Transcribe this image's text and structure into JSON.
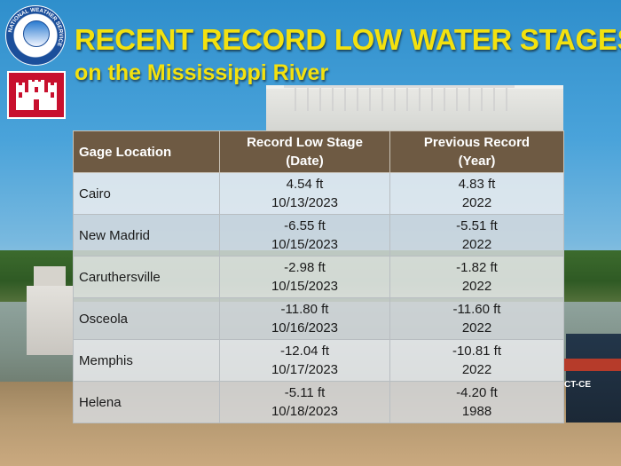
{
  "title": "RECENT RECORD LOW WATER STAGES",
  "subtitle": "on the Mississippi River",
  "logos": {
    "nws_text": "NATIONAL WEATHER SERVICE",
    "nws_icon": "nws-logo-icon",
    "usace_icon": "usace-castle-icon",
    "barge_text": "CT-CE"
  },
  "colors": {
    "title": "#f3e10f",
    "header_bg": "#6e5a43",
    "usace_red": "#c8102e",
    "nws_blue": "#1b4f9b"
  },
  "table": {
    "headers": {
      "location": "Gage Location",
      "record_line1": "Record Low Stage",
      "record_line2": "(Date)",
      "previous_line1": "Previous Record",
      "previous_line2": "(Year)"
    },
    "rows": [
      {
        "location": "Cairo",
        "record_stage": "4.54 ft",
        "record_date": "10/13/2023",
        "previous_stage": "4.83 ft",
        "previous_year": "2022"
      },
      {
        "location": "New Madrid",
        "record_stage": "-6.55 ft",
        "record_date": "10/15/2023",
        "previous_stage": "-5.51 ft",
        "previous_year": "2022"
      },
      {
        "location": "Caruthersville",
        "record_stage": "-2.98 ft",
        "record_date": "10/15/2023",
        "previous_stage": "-1.82 ft",
        "previous_year": "2022"
      },
      {
        "location": "Osceola",
        "record_stage": "-11.80 ft",
        "record_date": "10/16/2023",
        "previous_stage": "-11.60 ft",
        "previous_year": "2022"
      },
      {
        "location": "Memphis",
        "record_stage": "-12.04 ft",
        "record_date": "10/17/2023",
        "previous_stage": "-10.81 ft",
        "previous_year": "2022"
      },
      {
        "location": "Helena",
        "record_stage": "-5.11 ft",
        "record_date": "10/18/2023",
        "previous_stage": "-4.20 ft",
        "previous_year": "1988"
      }
    ]
  }
}
